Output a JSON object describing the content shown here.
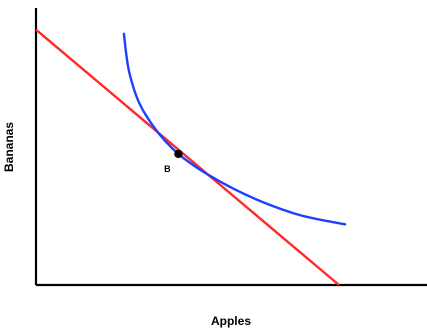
{
  "chart_data": {
    "type": "line",
    "title": "",
    "xlabel": "Apples",
    "ylabel": "Bananas",
    "grid": false,
    "legend": "none",
    "xlim": [
      0,
      10
    ],
    "ylim": [
      0,
      10
    ],
    "series": [
      {
        "type": "line",
        "color": "#ff2a2a",
        "x": [
          0,
          10
        ],
        "y": [
          9.25,
          0
        ]
      },
      {
        "type": "curve",
        "color": "#1f3fff",
        "x": [
          2.9,
          3.1,
          3.6,
          4.7,
          6.5,
          8.5,
          10.2
        ],
        "y": [
          9.1,
          7.6,
          6.2,
          4.75,
          3.5,
          2.6,
          2.2
        ]
      }
    ],
    "points": [
      {
        "label": "B",
        "x": 4.7,
        "y": 4.75,
        "color": "#000000"
      }
    ]
  }
}
